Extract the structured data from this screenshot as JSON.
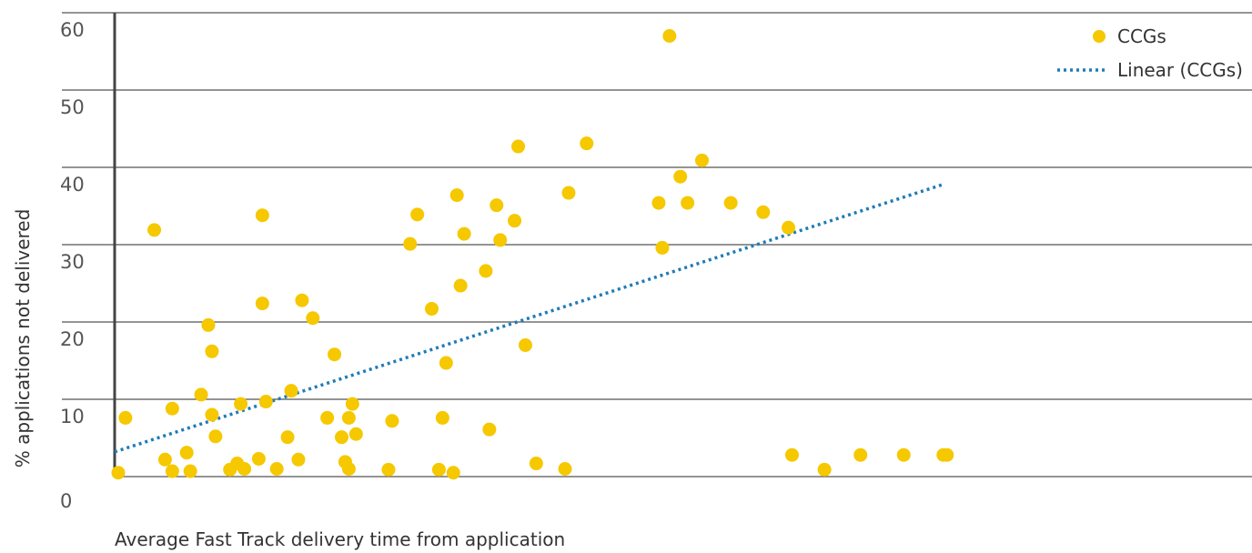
{
  "chart_data": {
    "type": "scatter",
    "xlabel": "Average Fast Track delivery time from application",
    "ylabel": "% applications not delivered",
    "ylim": [
      0,
      60
    ],
    "yticks": [
      "0",
      "10",
      "20",
      "30",
      "40",
      "50",
      "60"
    ],
    "grid": true,
    "legend_position": "top-right",
    "colors": {
      "points": "#f5c800",
      "trend": "#1f7bb8",
      "grid": "#555555",
      "axis": "#444444"
    },
    "series": [
      {
        "name": "CCGs",
        "marker": "circle",
        "x": [
          0.1,
          0.3,
          1.1,
          1.4,
          1.6,
          1.6,
          2.0,
          2.1,
          2.4,
          2.6,
          2.7,
          2.7,
          2.8,
          3.2,
          3.4,
          3.5,
          3.6,
          4.0,
          4.1,
          4.1,
          4.2,
          4.5,
          4.8,
          4.9,
          5.1,
          5.2,
          5.5,
          5.9,
          6.1,
          6.3,
          6.4,
          6.5,
          6.5,
          6.6,
          6.7,
          7.6,
          7.7,
          8.2,
          8.4,
          8.8,
          9.0,
          9.1,
          9.2,
          9.4,
          9.5,
          9.6,
          9.7,
          10.3,
          10.4,
          10.6,
          10.7,
          11.1,
          11.2,
          11.4,
          11.7,
          12.5,
          12.6,
          13.1,
          15.1,
          15.2,
          15.4,
          15.7,
          15.9,
          16.3,
          17.1,
          18.0,
          18.7,
          18.8,
          19.7,
          20.7,
          21.9,
          23.0,
          23.1
        ],
        "y": [
          0.5,
          7.6,
          31.9,
          2.2,
          8.8,
          0.7,
          3.1,
          0.7,
          10.6,
          19.6,
          16.2,
          8.0,
          5.2,
          0.9,
          1.7,
          9.4,
          1.0,
          2.3,
          33.8,
          22.4,
          9.7,
          1.0,
          5.1,
          11.1,
          2.2,
          22.8,
          20.5,
          7.6,
          15.8,
          5.1,
          1.9,
          7.6,
          1.0,
          9.4,
          5.5,
          0.9,
          7.2,
          30.1,
          33.9,
          21.7,
          0.9,
          7.6,
          14.7,
          0.5,
          36.4,
          24.7,
          31.4,
          26.6,
          6.1,
          35.1,
          30.6,
          33.1,
          42.7,
          17.0,
          1.7,
          1.0,
          36.7,
          43.1,
          35.4,
          29.6,
          57.0,
          38.8,
          35.4,
          40.9,
          35.4,
          34.2,
          32.2,
          2.8,
          0.9,
          2.8,
          2.8,
          2.8,
          2.8
        ]
      },
      {
        "name": "Linear (CCGs)",
        "type": "line",
        "style": "dotted",
        "x": [
          0,
          23.0
        ],
        "y": [
          3.2,
          37.8
        ]
      }
    ],
    "xlim": [
      0,
      32
    ]
  }
}
